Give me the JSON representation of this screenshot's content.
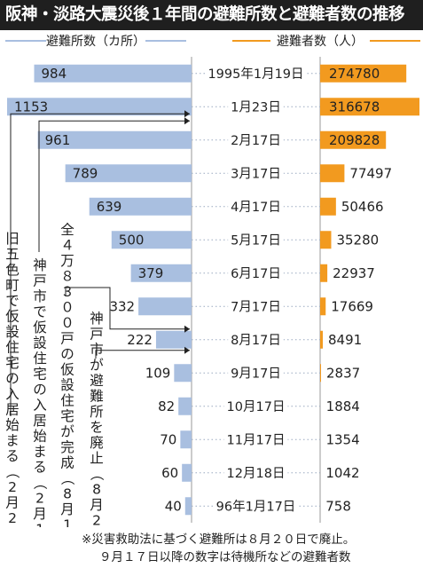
{
  "title": "阪神・淡路大震災後１年間の避難所数と避難者数の推移",
  "colors": {
    "shelter": "#a9bfe0",
    "evacuee": "#f29a1f",
    "title_bg": "#1f1f1f",
    "dotted": "#9aa9c0"
  },
  "chart_data": {
    "type": "bar",
    "legend_left": "避難所数（カ所）",
    "legend_right": "避難者数（人）",
    "dates": [
      "1995年1月19日",
      "1月23日",
      "2月17日",
      "3月17日",
      "4月17日",
      "5月17日",
      "6月17日",
      "7月17日",
      "8月17日",
      "9月17日",
      "10月17日",
      "11月17日",
      "12月18日",
      "96年1月17日"
    ],
    "series": [
      {
        "name": "避難所数（カ所）",
        "values": [
          984,
          1153,
          961,
          789,
          639,
          500,
          379,
          332,
          222,
          109,
          82,
          70,
          60,
          40
        ]
      },
      {
        "name": "避難者数（人）",
        "values": [
          274780,
          316678,
          209828,
          77497,
          50466,
          35280,
          22937,
          17669,
          8491,
          2837,
          1884,
          1354,
          1042,
          758
        ]
      }
    ],
    "annotations": [
      "旧五色町で仮設住宅の入居始まる（2月2日）",
      "神戸市で仮設住宅の入居始まる（2月15日）",
      "全４万８３００戸の仮設住宅が完成（8月11日）",
      "神戸市が避難所を廃止（8月20日）"
    ]
  },
  "notes": [
    "※災害救助法に基づく避難所は８月２０日で廃止。",
    "９月１７日以降の数字は待機所などの避難者数"
  ]
}
